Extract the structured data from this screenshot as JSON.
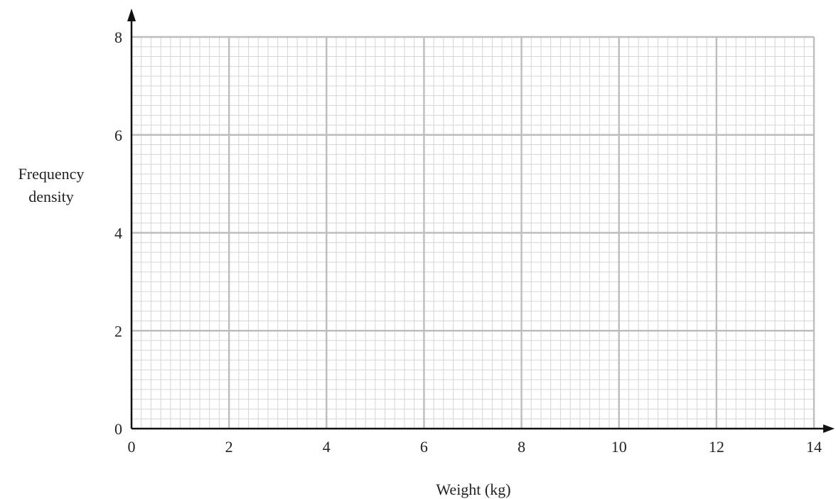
{
  "chart_data": {
    "type": "bar",
    "title": "",
    "xlabel": "Weight (kg)",
    "ylabel_lines": [
      "Frequency",
      "density"
    ],
    "xlim": [
      0,
      14
    ],
    "ylim": [
      0,
      8
    ],
    "x_ticks": [
      "0",
      "2",
      "4",
      "6",
      "8",
      "10",
      "12",
      "14"
    ],
    "y_ticks": [
      "0",
      "2",
      "4",
      "6",
      "8"
    ],
    "x_major_step": 2,
    "y_major_step": 2,
    "x_minor_step": 0.2,
    "y_minor_step": 0.2,
    "grid": true,
    "series": [],
    "colors": {
      "axis": "#111111",
      "major_grid": "#bdbdbd",
      "minor_grid": "#d6d6d6",
      "text": "#222222"
    }
  }
}
